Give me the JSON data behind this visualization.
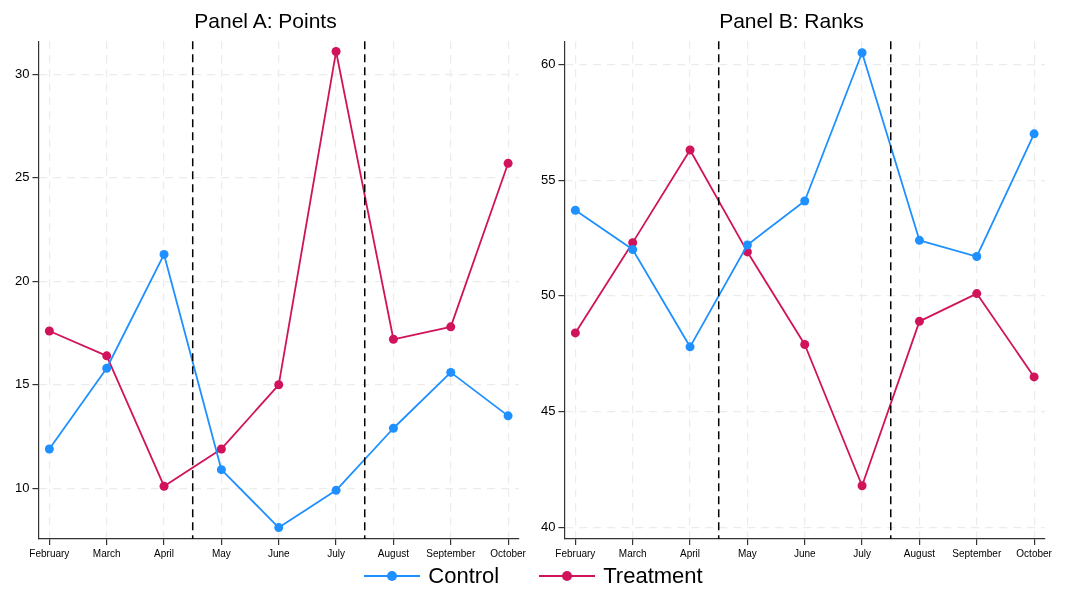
{
  "chart_data": [
    {
      "type": "line",
      "title": "Panel A: Points",
      "categories": [
        "February",
        "March",
        "April",
        "May",
        "June",
        "July",
        "August",
        "September",
        "October"
      ],
      "ylim": [
        7.55,
        31.6
      ],
      "yticks": [
        10,
        15,
        20,
        25,
        30
      ],
      "grid": true,
      "legend": "bottom",
      "marker": "circle",
      "line_style": "solid",
      "series": [
        {
          "name": "Control",
          "color": "#1e90ff",
          "values": [
            11.9,
            15.8,
            21.3,
            10.9,
            8.1,
            9.9,
            12.9,
            15.6,
            13.5
          ]
        },
        {
          "name": "Treatment",
          "color": "#d0135a",
          "values": [
            17.6,
            16.4,
            10.1,
            11.9,
            15.0,
            31.1,
            17.2,
            17.8,
            25.7
          ]
        }
      ]
    },
    {
      "type": "line",
      "title": "Panel B: Ranks",
      "categories": [
        "February",
        "March",
        "April",
        "May",
        "June",
        "July",
        "August",
        "September",
        "October"
      ],
      "ylim": [
        39.5,
        61.0
      ],
      "yticks": [
        40,
        45,
        50,
        55,
        60
      ],
      "grid": true,
      "legend": "bottom",
      "marker": "circle",
      "line_style": "solid",
      "series": [
        {
          "name": "Control",
          "color": "#1e90ff",
          "values": [
            53.7,
            52.0,
            47.8,
            52.2,
            54.1,
            60.5,
            52.4,
            51.7,
            57.0
          ]
        },
        {
          "name": "Treatment",
          "color": "#d0135a",
          "values": [
            48.4,
            52.3,
            56.3,
            51.9,
            47.9,
            41.8,
            48.9,
            50.1,
            46.5
          ]
        }
      ]
    }
  ]
}
